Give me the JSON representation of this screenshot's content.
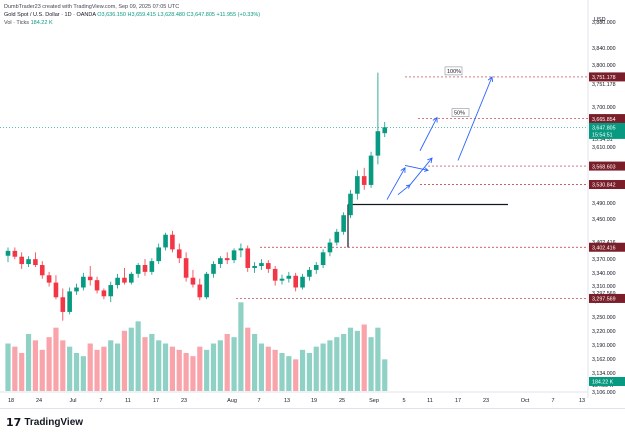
{
  "header": {
    "created_by": "DumbTrader23 created with TradingView.com, Sep 09, 2025 07:05 UTC",
    "symbol": "Gold Spot / U.S. Dollar · 1D · OANDA",
    "ohlc": "O3,636.150 H3,659.415 L3,628.480 C3,647.805 +11.955 (+0.33%)",
    "volume_label": "Vol · Ticks",
    "volume_value": "184.22 K"
  },
  "axis": {
    "currency": "USD",
    "price_ticks": [
      "3,880.000",
      "3,840.000",
      "3,800.000",
      "3,751.178",
      "3,700.000",
      "3,665.854",
      "3,647.805",
      "15:54:51",
      "3,610.000",
      "3,568.603",
      "3,530.842",
      "3,490.000",
      "3,450.000",
      "3,402.416",
      "3,370.000",
      "3,340.000",
      "3,310.000",
      "3,297.569",
      "3,280.000",
      "3,250.000",
      "3,220.000",
      "3,190.000",
      "3,162.000",
      "3,134.000",
      "184.22 K",
      "3,106.000"
    ],
    "date_ticks": [
      "18",
      "24",
      "Jul",
      "7",
      "11",
      "17",
      "23",
      "Aug",
      "7",
      "13",
      "19",
      "25",
      "Sep",
      "5",
      "11",
      "17",
      "23",
      "Oct",
      "7",
      "13"
    ]
  },
  "chart_data": {
    "type": "candlestick",
    "title": "Gold Spot / U.S. Dollar · 1D · OANDA",
    "price_range": [
      3106,
      3880
    ],
    "candles": [
      {
        "o": 3385,
        "h": 3402,
        "l": 3372,
        "c": 3395
      },
      {
        "o": 3395,
        "h": 3402,
        "l": 3378,
        "c": 3383
      },
      {
        "o": 3383,
        "h": 3392,
        "l": 3358,
        "c": 3368
      },
      {
        "o": 3368,
        "h": 3384,
        "l": 3362,
        "c": 3378
      },
      {
        "o": 3378,
        "h": 3392,
        "l": 3362,
        "c": 3366
      },
      {
        "o": 3366,
        "h": 3374,
        "l": 3338,
        "c": 3345
      },
      {
        "o": 3345,
        "h": 3352,
        "l": 3322,
        "c": 3330
      },
      {
        "o": 3330,
        "h": 3345,
        "l": 3296,
        "c": 3300
      },
      {
        "o": 3300,
        "h": 3318,
        "l": 3252,
        "c": 3270
      },
      {
        "o": 3270,
        "h": 3320,
        "l": 3265,
        "c": 3312
      },
      {
        "o": 3312,
        "h": 3328,
        "l": 3305,
        "c": 3320
      },
      {
        "o": 3320,
        "h": 3350,
        "l": 3314,
        "c": 3342
      },
      {
        "o": 3342,
        "h": 3364,
        "l": 3324,
        "c": 3335
      },
      {
        "o": 3335,
        "h": 3342,
        "l": 3308,
        "c": 3314
      },
      {
        "o": 3314,
        "h": 3318,
        "l": 3296,
        "c": 3302
      },
      {
        "o": 3302,
        "h": 3332,
        "l": 3290,
        "c": 3325
      },
      {
        "o": 3325,
        "h": 3348,
        "l": 3318,
        "c": 3340
      },
      {
        "o": 3340,
        "h": 3360,
        "l": 3326,
        "c": 3330
      },
      {
        "o": 3330,
        "h": 3352,
        "l": 3326,
        "c": 3348
      },
      {
        "o": 3348,
        "h": 3370,
        "l": 3340,
        "c": 3366
      },
      {
        "o": 3366,
        "h": 3378,
        "l": 3344,
        "c": 3352
      },
      {
        "o": 3352,
        "h": 3380,
        "l": 3346,
        "c": 3374
      },
      {
        "o": 3374,
        "h": 3410,
        "l": 3368,
        "c": 3402
      },
      {
        "o": 3402,
        "h": 3432,
        "l": 3396,
        "c": 3428
      },
      {
        "o": 3428,
        "h": 3436,
        "l": 3392,
        "c": 3398
      },
      {
        "o": 3398,
        "h": 3410,
        "l": 3370,
        "c": 3380
      },
      {
        "o": 3380,
        "h": 3392,
        "l": 3332,
        "c": 3340
      },
      {
        "o": 3340,
        "h": 3356,
        "l": 3320,
        "c": 3326
      },
      {
        "o": 3326,
        "h": 3338,
        "l": 3294,
        "c": 3300
      },
      {
        "o": 3300,
        "h": 3352,
        "l": 3296,
        "c": 3348
      },
      {
        "o": 3348,
        "h": 3374,
        "l": 3340,
        "c": 3368
      },
      {
        "o": 3368,
        "h": 3384,
        "l": 3360,
        "c": 3380
      },
      {
        "o": 3380,
        "h": 3392,
        "l": 3368,
        "c": 3376
      },
      {
        "o": 3376,
        "h": 3400,
        "l": 3370,
        "c": 3396
      },
      {
        "o": 3396,
        "h": 3410,
        "l": 3382,
        "c": 3400
      },
      {
        "o": 3400,
        "h": 3406,
        "l": 3352,
        "c": 3360
      },
      {
        "o": 3360,
        "h": 3372,
        "l": 3350,
        "c": 3364
      },
      {
        "o": 3364,
        "h": 3378,
        "l": 3356,
        "c": 3370
      },
      {
        "o": 3370,
        "h": 3376,
        "l": 3350,
        "c": 3358
      },
      {
        "o": 3358,
        "h": 3364,
        "l": 3324,
        "c": 3334
      },
      {
        "o": 3334,
        "h": 3346,
        "l": 3326,
        "c": 3338
      },
      {
        "o": 3338,
        "h": 3352,
        "l": 3330,
        "c": 3344
      },
      {
        "o": 3344,
        "h": 3350,
        "l": 3312,
        "c": 3320
      },
      {
        "o": 3320,
        "h": 3348,
        "l": 3316,
        "c": 3342
      },
      {
        "o": 3342,
        "h": 3362,
        "l": 3334,
        "c": 3356
      },
      {
        "o": 3356,
        "h": 3372,
        "l": 3348,
        "c": 3366
      },
      {
        "o": 3366,
        "h": 3398,
        "l": 3360,
        "c": 3392
      },
      {
        "o": 3392,
        "h": 3420,
        "l": 3384,
        "c": 3412
      },
      {
        "o": 3412,
        "h": 3440,
        "l": 3406,
        "c": 3434
      },
      {
        "o": 3434,
        "h": 3474,
        "l": 3428,
        "c": 3468
      },
      {
        "o": 3468,
        "h": 3520,
        "l": 3462,
        "c": 3512
      },
      {
        "o": 3512,
        "h": 3560,
        "l": 3500,
        "c": 3548
      },
      {
        "o": 3548,
        "h": 3565,
        "l": 3520,
        "c": 3530
      },
      {
        "o": 3530,
        "h": 3598,
        "l": 3524,
        "c": 3590
      },
      {
        "o": 3590,
        "h": 3760,
        "l": 3572,
        "c": 3640
      },
      {
        "o": 3636,
        "h": 3659,
        "l": 3628,
        "c": 3648
      }
    ],
    "volume": [
      15,
      14,
      12,
      18,
      16,
      13,
      17,
      20,
      16,
      14,
      12,
      11,
      15,
      13,
      14,
      16,
      15,
      19,
      20,
      22,
      17,
      18,
      16,
      15,
      14,
      13,
      12,
      11,
      14,
      13,
      15,
      16,
      18,
      17,
      28,
      20,
      18,
      15,
      14,
      13,
      12,
      11,
      10,
      13,
      12,
      14,
      15,
      16,
      17,
      18,
      20,
      19,
      21,
      17,
      20,
      10
    ],
    "levels": [
      {
        "label": "100%",
        "price": 3751.178
      },
      {
        "label": "50%",
        "price": 3665.854
      },
      {
        "label": "",
        "price": 3568.603
      },
      {
        "label": "",
        "price": 3530.842
      },
      {
        "label": "",
        "price": 3402.416
      },
      {
        "label": "",
        "price": 3297.569
      }
    ],
    "colors": {
      "up": "#089981",
      "down": "#f23645",
      "level": "#b2303d",
      "arrow": "#2962ff",
      "level_label_bg": "#7a1e2a"
    }
  },
  "footer": {
    "brand": "TradingView",
    "logo_mark": "17"
  }
}
